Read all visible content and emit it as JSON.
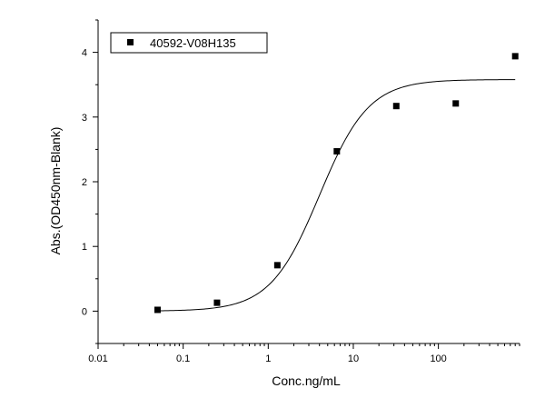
{
  "chart_data": {
    "type": "scatter",
    "xlabel": "Conc.ng/mL",
    "ylabel": "Abs.(OD450nm-Blank)",
    "x_scale": "log",
    "xlim": [
      0.01,
      900
    ],
    "ylim": [
      -0.5,
      4.5
    ],
    "x_ticks": [
      0.01,
      0.1,
      1,
      10,
      100
    ],
    "x_tick_labels": [
      "0.01",
      "0.1",
      "1",
      "10",
      "100"
    ],
    "y_ticks": [
      0,
      1,
      2,
      3,
      4
    ],
    "y_tick_labels": [
      "0",
      "1",
      "2",
      "3",
      "4"
    ],
    "legend_position": "top-left",
    "grid": false,
    "series": [
      {
        "name": "40592-V08H135",
        "marker": "square",
        "color": "#000000",
        "points": [
          {
            "x": 0.05,
            "y": 0.02
          },
          {
            "x": 0.25,
            "y": 0.13
          },
          {
            "x": 1.28,
            "y": 0.71
          },
          {
            "x": 6.4,
            "y": 2.47
          },
          {
            "x": 32,
            "y": 3.17
          },
          {
            "x": 160,
            "y": 3.21
          },
          {
            "x": 800,
            "y": 3.94
          }
        ]
      }
    ],
    "fit_curve": {
      "type": "4PL",
      "bottom": 0.0,
      "top": 3.58,
      "ec50": 4.0,
      "hill": 1.5,
      "x_range": [
        0.05,
        800
      ],
      "color": "#000000"
    }
  }
}
